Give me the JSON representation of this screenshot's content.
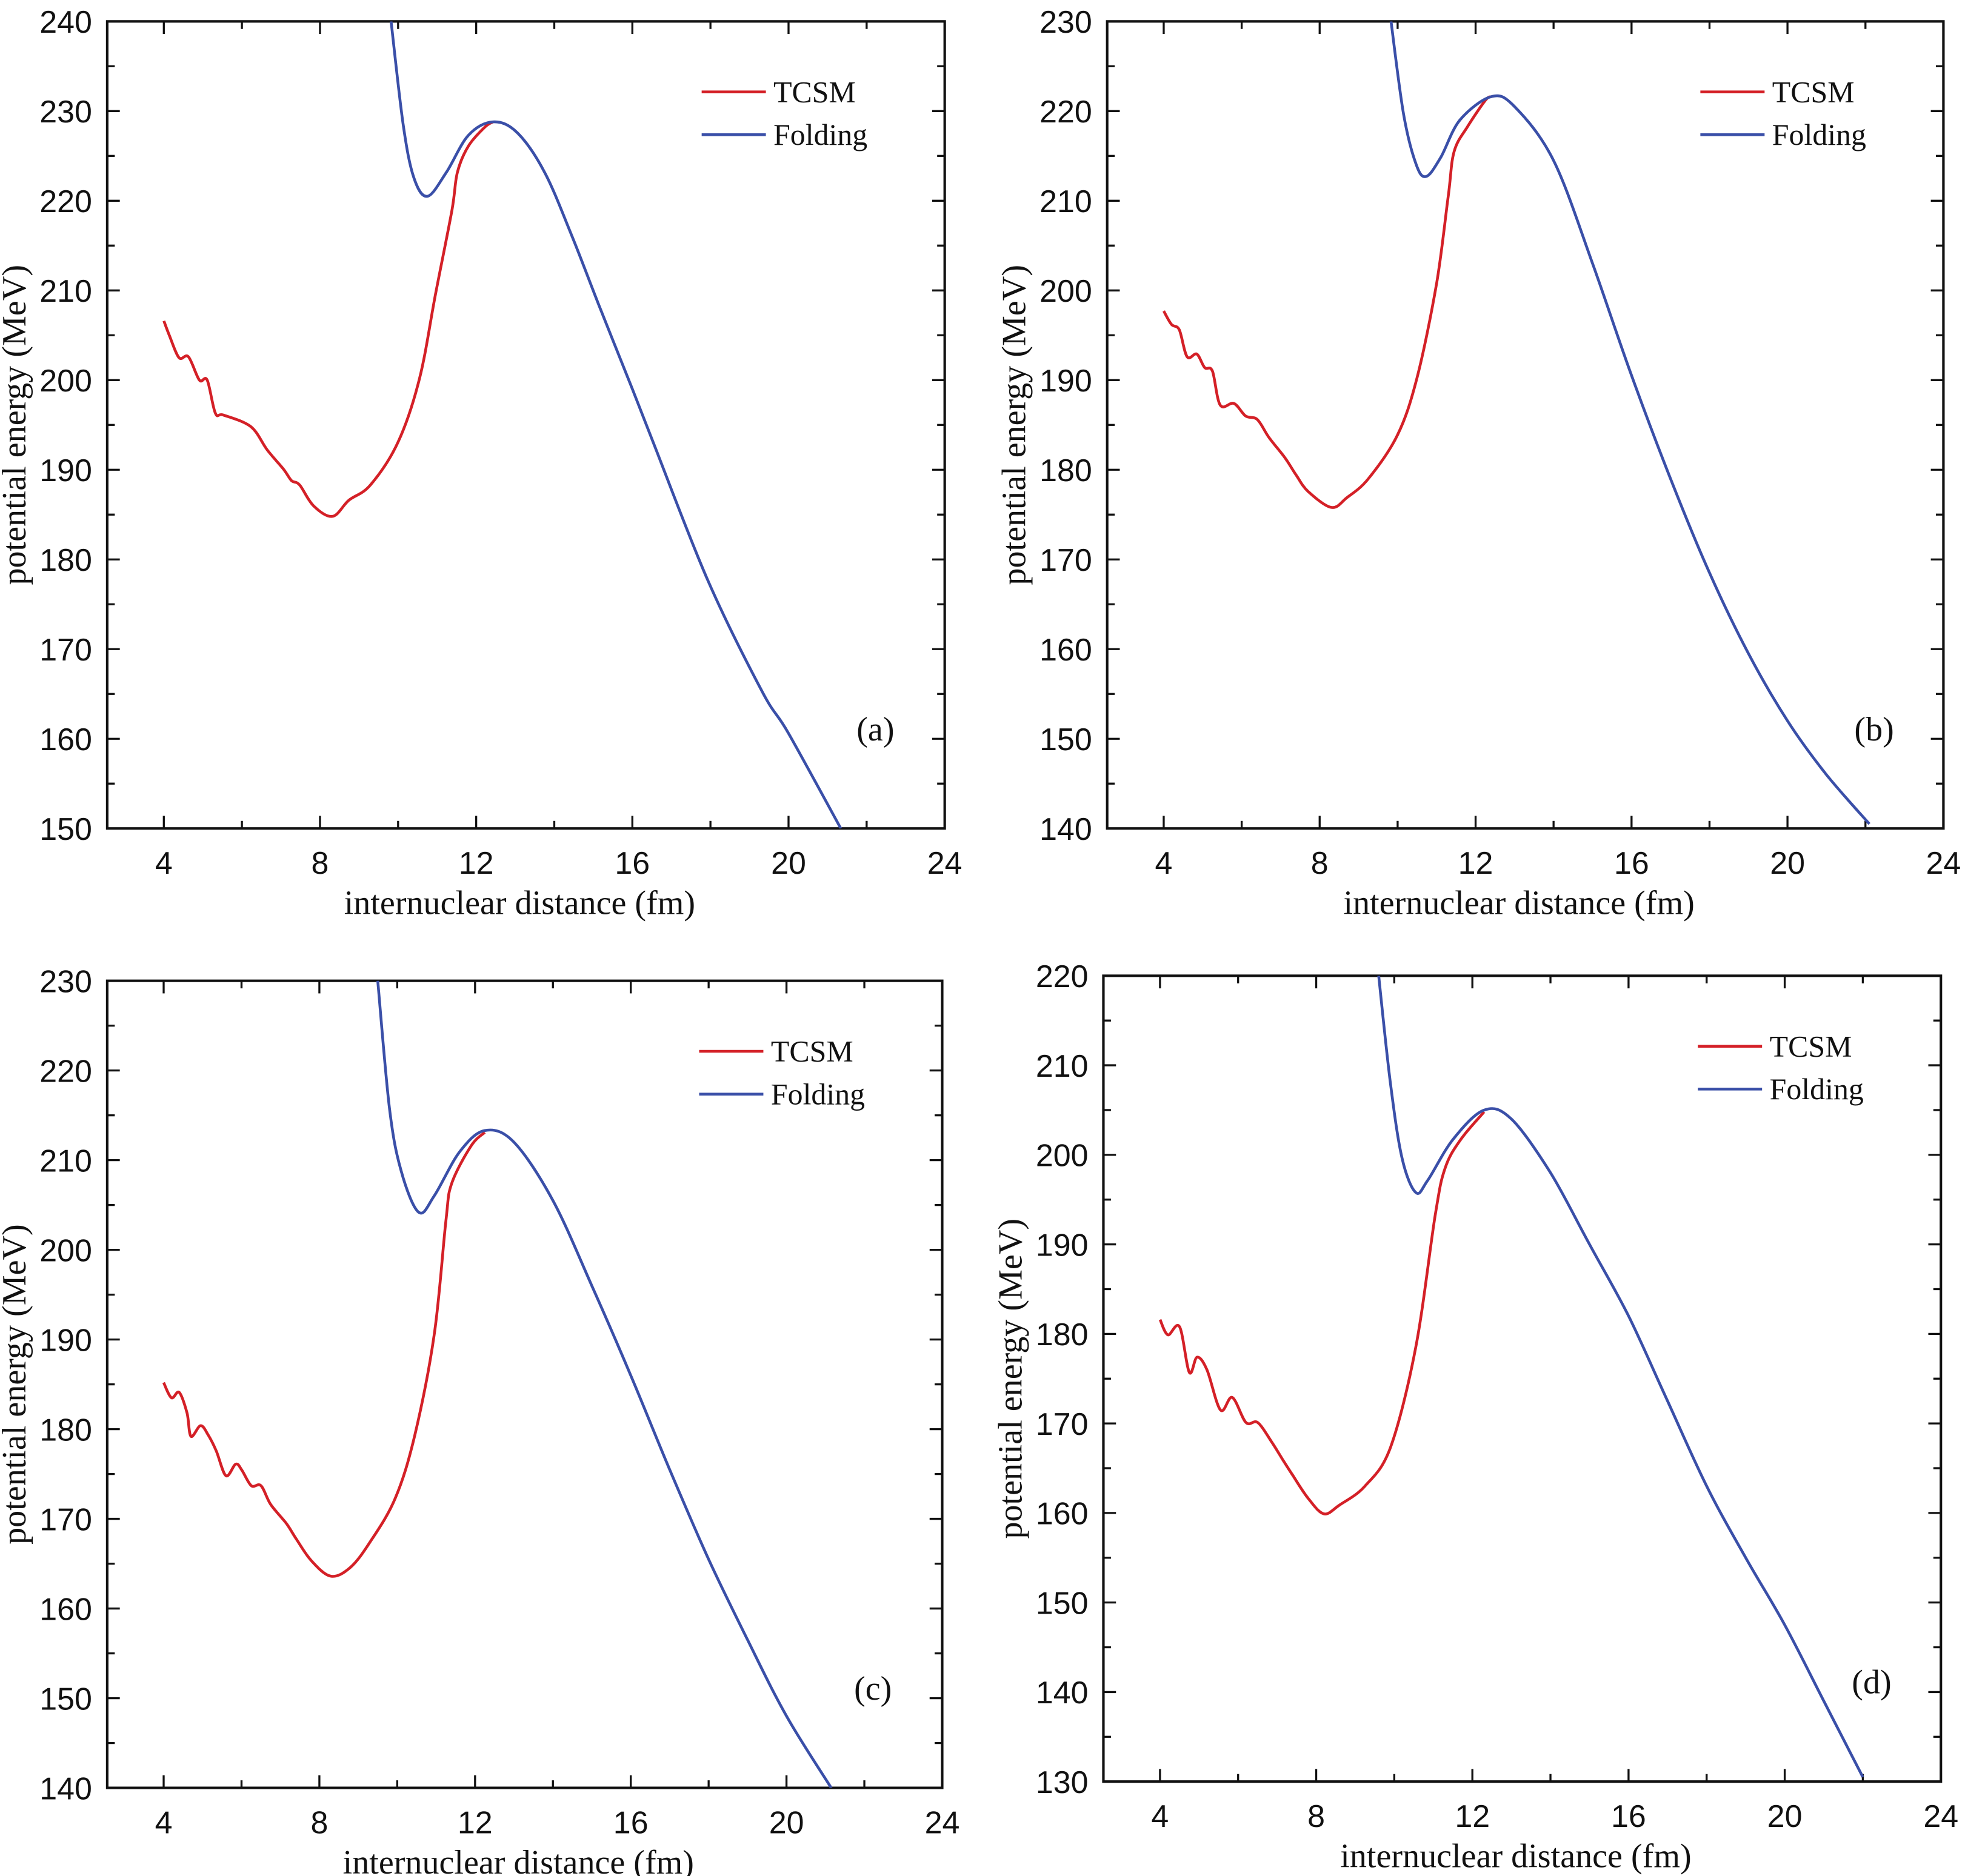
{
  "chart_data": [
    {
      "type": "line",
      "panel_label": "(a)",
      "xlabel": "internuclear distance (fm)",
      "ylabel": "potential energy (MeV)",
      "xlim": [
        2.55,
        24
      ],
      "ylim": [
        150,
        240
      ],
      "xticks": [
        4,
        8,
        12,
        16,
        20,
        24
      ],
      "yticks": [
        150,
        160,
        170,
        180,
        190,
        200,
        210,
        220,
        230,
        240
      ],
      "legend": {
        "position": "top-right",
        "entries": [
          "TCSM",
          "Folding"
        ]
      },
      "series": [
        {
          "name": "TCSM",
          "color": "#d42027",
          "points": [
            [
              4,
              206.6
            ],
            [
              4.14,
              205
            ],
            [
              4.39,
              202.5
            ],
            [
              4.63,
              202.6
            ],
            [
              4.91,
              200
            ],
            [
              5.11,
              200
            ],
            [
              5.32,
              196.3
            ],
            [
              5.53,
              196.1
            ],
            [
              6.23,
              194.8
            ],
            [
              6.65,
              192.2
            ],
            [
              7.06,
              190.1
            ],
            [
              7.27,
              188.8
            ],
            [
              7.48,
              188.3
            ],
            [
              7.83,
              186
            ],
            [
              8.32,
              184.8
            ],
            [
              8.74,
              186.6
            ],
            [
              9.29,
              188.3
            ],
            [
              10,
              193.1
            ],
            [
              10.55,
              200.2
            ],
            [
              10.96,
              209.6
            ],
            [
              11.38,
              219
            ],
            [
              11.52,
              223.2
            ],
            [
              11.8,
              226.1
            ],
            [
              12.22,
              228.2
            ],
            [
              12.43,
              228.8
            ]
          ]
        },
        {
          "name": "Folding",
          "color": "#3a4fa8",
          "points": [
            [
              9.82,
              240
            ],
            [
              10.13,
              228.5
            ],
            [
              10.4,
              222.6
            ],
            [
              10.75,
              220.5
            ],
            [
              11.24,
              223.2
            ],
            [
              11.8,
              227.3
            ],
            [
              12.43,
              228.8
            ],
            [
              13.05,
              227.6
            ],
            [
              13.75,
              223.2
            ],
            [
              14.45,
              216.1
            ],
            [
              15.14,
              208.4
            ],
            [
              16,
              199
            ],
            [
              16.53,
              193.1
            ],
            [
              17.93,
              177.7
            ],
            [
              19.32,
              165.3
            ],
            [
              20,
              160.6
            ],
            [
              21.34,
              150
            ]
          ]
        }
      ]
    },
    {
      "type": "line",
      "panel_label": "(b)",
      "xlabel": "internuclear distance (fm)",
      "ylabel": "potential energy (MeV)",
      "xlim": [
        2.55,
        24
      ],
      "ylim": [
        140,
        230
      ],
      "xticks": [
        4,
        8,
        12,
        16,
        20,
        24
      ],
      "yticks": [
        140,
        150,
        160,
        170,
        180,
        190,
        200,
        210,
        220,
        230
      ],
      "legend": {
        "position": "top-right",
        "entries": [
          "TCSM",
          "Folding"
        ]
      },
      "series": [
        {
          "name": "TCSM",
          "color": "#d42027",
          "points": [
            [
              4,
              197.7
            ],
            [
              4.2,
              196.2
            ],
            [
              4.4,
              195.6
            ],
            [
              4.6,
              192.6
            ],
            [
              4.85,
              192.9
            ],
            [
              5.05,
              191.4
            ],
            [
              5.25,
              191
            ],
            [
              5.45,
              187.2
            ],
            [
              5.8,
              187.4
            ],
            [
              6.1,
              186
            ],
            [
              6.4,
              185.6
            ],
            [
              6.7,
              183.6
            ],
            [
              7.1,
              181.4
            ],
            [
              7.4,
              179.4
            ],
            [
              7.7,
              177.6
            ],
            [
              8.3,
              175.8
            ],
            [
              8.7,
              176.9
            ],
            [
              9.25,
              179
            ],
            [
              10,
              183.9
            ],
            [
              10.5,
              190.3
            ],
            [
              11,
              200.8
            ],
            [
              11.3,
              210.6
            ],
            [
              11.45,
              215.5
            ],
            [
              11.8,
              218.3
            ],
            [
              12.25,
              221.2
            ],
            [
              12.4,
              221.6
            ]
          ]
        },
        {
          "name": "Folding",
          "color": "#3a4fa8",
          "points": [
            [
              9.83,
              230
            ],
            [
              10.15,
              219.7
            ],
            [
              10.47,
              214.1
            ],
            [
              10.73,
              212.7
            ],
            [
              11.1,
              214.8
            ],
            [
              11.6,
              219
            ],
            [
              12.4,
              221.6
            ],
            [
              13,
              220.5
            ],
            [
              14,
              214.5
            ],
            [
              15,
              203
            ],
            [
              16,
              190.5
            ],
            [
              17,
              179
            ],
            [
              18,
              168.5
            ],
            [
              19,
              159.5
            ],
            [
              20,
              152
            ],
            [
              21,
              146
            ],
            [
              22.1,
              140.5
            ]
          ]
        }
      ]
    },
    {
      "type": "line",
      "panel_label": "(c)",
      "xlabel": "internuclear distance (fm)",
      "ylabel": "potential energy (MeV)",
      "xlim": [
        2.55,
        24
      ],
      "ylim": [
        140,
        230
      ],
      "xticks": [
        4,
        8,
        12,
        16,
        20,
        24
      ],
      "yticks": [
        140,
        150,
        160,
        170,
        180,
        190,
        200,
        210,
        220,
        230
      ],
      "legend": {
        "position": "top-right",
        "entries": [
          "TCSM",
          "Folding"
        ]
      },
      "series": [
        {
          "name": "TCSM",
          "color": "#d42027",
          "points": [
            [
              4,
              185.2
            ],
            [
              4.2,
              183.5
            ],
            [
              4.4,
              184.1
            ],
            [
              4.6,
              181.8
            ],
            [
              4.7,
              179.2
            ],
            [
              4.95,
              180.4
            ],
            [
              5.15,
              179.3
            ],
            [
              5.35,
              177.6
            ],
            [
              5.6,
              174.8
            ],
            [
              5.85,
              176.1
            ],
            [
              6,
              175.5
            ],
            [
              6.25,
              173.7
            ],
            [
              6.5,
              173.7
            ],
            [
              6.75,
              171.6
            ],
            [
              7.15,
              169.5
            ],
            [
              7.4,
              167.8
            ],
            [
              7.8,
              165.3
            ],
            [
              8.3,
              163.6
            ],
            [
              8.8,
              164.6
            ],
            [
              9.3,
              167.4
            ],
            [
              9.95,
              172.3
            ],
            [
              10.45,
              179.3
            ],
            [
              10.95,
              190.5
            ],
            [
              11.25,
              203.2
            ],
            [
              11.4,
              207.4
            ],
            [
              11.9,
              211.6
            ],
            [
              12.25,
              213.1
            ]
          ]
        },
        {
          "name": "Folding",
          "color": "#3a4fa8",
          "points": [
            [
              9.5,
              230
            ],
            [
              9.8,
              215.8
            ],
            [
              10.1,
              208.8
            ],
            [
              10.55,
              204.2
            ],
            [
              10.95,
              206
            ],
            [
              11.6,
              210.9
            ],
            [
              12.25,
              213.3
            ],
            [
              13,
              212
            ],
            [
              14,
              205.5
            ],
            [
              15,
              196
            ],
            [
              16,
              186
            ],
            [
              17,
              175.5
            ],
            [
              18,
              165.5
            ],
            [
              19,
              156.5
            ],
            [
              20,
              148
            ],
            [
              21.15,
              140
            ]
          ]
        }
      ]
    },
    {
      "type": "line",
      "panel_label": "(d)",
      "xlabel": "internuclear distance (fm)",
      "ylabel": "potential energy (MeV)",
      "xlim": [
        2.55,
        24
      ],
      "ylim": [
        130,
        220
      ],
      "xticks": [
        4,
        8,
        12,
        16,
        20,
        24
      ],
      "yticks": [
        130,
        140,
        150,
        160,
        170,
        180,
        190,
        200,
        210,
        220
      ],
      "legend": {
        "position": "top-right",
        "entries": [
          "TCSM",
          "Folding"
        ]
      },
      "series": [
        {
          "name": "TCSM",
          "color": "#d42027",
          "points": [
            [
              4,
              181.6
            ],
            [
              4.2,
              179.9
            ],
            [
              4.5,
              180.8
            ],
            [
              4.75,
              175.7
            ],
            [
              4.95,
              177.4
            ],
            [
              5.2,
              176
            ],
            [
              5.55,
              171.5
            ],
            [
              5.85,
              172.9
            ],
            [
              6.2,
              170.1
            ],
            [
              6.5,
              170.1
            ],
            [
              6.85,
              168
            ],
            [
              7.15,
              165.9
            ],
            [
              7.4,
              164.2
            ],
            [
              7.8,
              161.6
            ],
            [
              8.2,
              159.9
            ],
            [
              8.6,
              160.9
            ],
            [
              9.25,
              163
            ],
            [
              9.9,
              167.3
            ],
            [
              10.55,
              178.5
            ],
            [
              11.05,
              193.3
            ],
            [
              11.3,
              198.5
            ],
            [
              11.7,
              201.7
            ],
            [
              12.3,
              204.8
            ]
          ]
        },
        {
          "name": "Folding",
          "color": "#3a4fa8",
          "points": [
            [
              9.6,
              220
            ],
            [
              9.9,
              208
            ],
            [
              10.2,
              199.6
            ],
            [
              10.55,
              195.8
            ],
            [
              10.85,
              197.1
            ],
            [
              11.5,
              201.7
            ],
            [
              12.3,
              205
            ],
            [
              13,
              204
            ],
            [
              14,
              198
            ],
            [
              15,
              190
            ],
            [
              16,
              182
            ],
            [
              17,
              172.5
            ],
            [
              18,
              163
            ],
            [
              19,
              155
            ],
            [
              20,
              147.5
            ],
            [
              21,
              139
            ],
            [
              22,
              130.5
            ]
          ]
        }
      ]
    }
  ]
}
